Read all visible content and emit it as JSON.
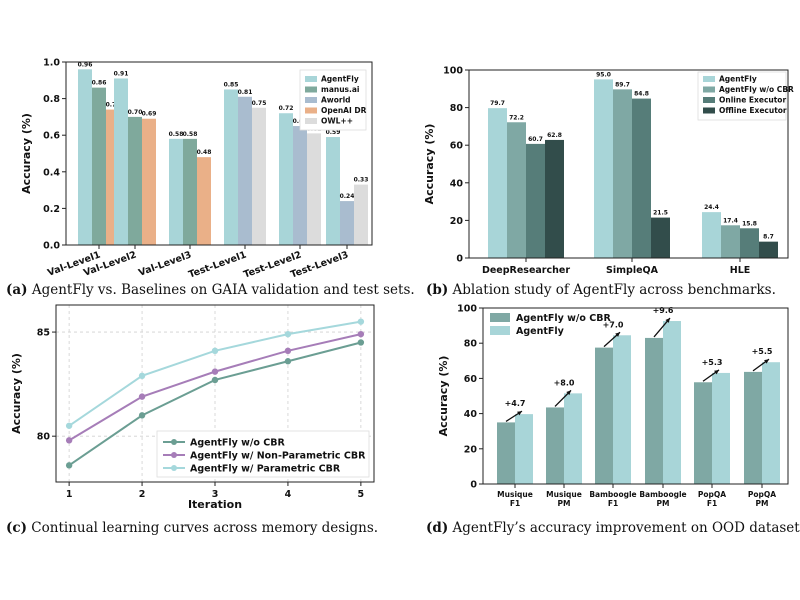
{
  "captions": {
    "a": {
      "tag": "(a)",
      "text": "AgentFly vs. Baselines on GAIA validation and test sets."
    },
    "b": {
      "tag": "(b)",
      "text": "Ablation study of AgentFly across benchmarks."
    },
    "c": {
      "tag": "(c)",
      "text": "Continual learning curves across memory designs."
    },
    "d": {
      "tag": "(d)",
      "text": "AgentFly’s accuracy improvement on OOD datasets."
    }
  },
  "chart_data": [
    {
      "id": "a",
      "type": "bar",
      "ylabel": "Accuracy (%)",
      "xlabel": "",
      "ylim": [
        0,
        1.0
      ],
      "yticks": [
        "0.0",
        "0.2",
        "0.4",
        "0.6",
        "0.8",
        "1.0"
      ],
      "categories": [
        "Val-Level1",
        "Val-Level2",
        "Val-Level3",
        "Test-Level1",
        "Test-Level2",
        "Test-Level3"
      ],
      "legend_position": "top-right",
      "series": [
        {
          "name": "AgentFly",
          "color": "#a8d5d8",
          "values": [
            0.96,
            0.91,
            0.58,
            0.85,
            0.72,
            0.59
          ]
        },
        {
          "name": "manus.ai",
          "color": "#7fa99c",
          "values": [
            0.86,
            0.7,
            0.58,
            null,
            null,
            null
          ]
        },
        {
          "name": "Aworld",
          "color": "#a9bccf",
          "values": [
            null,
            null,
            null,
            0.81,
            0.65,
            0.24
          ]
        },
        {
          "name": "OpenAI DR",
          "color": "#eab088",
          "values": [
            0.74,
            0.69,
            0.48,
            null,
            null,
            null
          ]
        },
        {
          "name": "OWL++",
          "color": "#dcdcdc",
          "values": [
            null,
            null,
            null,
            0.75,
            0.61,
            0.33
          ]
        }
      ],
      "labels": [
        [
          "0.96",
          "0.91",
          "0.58",
          "0.85",
          "0.72",
          "0.59"
        ],
        [
          "0.86",
          "0.70",
          "0.58",
          "",
          "",
          ""
        ],
        [
          "",
          "",
          "",
          "0.81",
          "0.65",
          "0.24"
        ],
        [
          "0.74",
          "0.69",
          "0.48",
          "",
          "",
          ""
        ],
        [
          "",
          "",
          "",
          "0.75",
          "0.61",
          "0.33"
        ]
      ]
    },
    {
      "id": "b",
      "type": "bar",
      "ylabel": "Accuracy (%)",
      "xlabel": "",
      "ylim": [
        0,
        100
      ],
      "yticks": [
        "0",
        "20",
        "40",
        "60",
        "80",
        "100"
      ],
      "categories": [
        "DeepResearcher",
        "SimpleQA",
        "HLE"
      ],
      "legend_position": "top-right",
      "series": [
        {
          "name": "AgentFly",
          "color": "#a8d5d8",
          "values": [
            79.7,
            95.0,
            24.4
          ]
        },
        {
          "name": "AgentFly w/o CBR",
          "color": "#7fa8a4",
          "values": [
            72.2,
            89.7,
            17.4
          ]
        },
        {
          "name": "Online Executor",
          "color": "#567d79",
          "values": [
            60.7,
            84.8,
            15.8
          ]
        },
        {
          "name": "Offline Executor",
          "color": "#324d4b",
          "values": [
            62.8,
            21.5,
            8.7
          ]
        }
      ],
      "labels": [
        [
          "79.7",
          "95.0",
          "24.4"
        ],
        [
          "72.2",
          "89.7",
          "17.4"
        ],
        [
          "60.7",
          "84.8",
          "15.8"
        ],
        [
          "62.8",
          "21.5",
          "8.7"
        ]
      ]
    },
    {
      "id": "c",
      "type": "line",
      "ylabel": "Accuracy (%)",
      "xlabel": "Iteration",
      "x": [
        1,
        2,
        3,
        4,
        5
      ],
      "ylim": [
        77.8,
        86.3
      ],
      "yticks": [
        "80",
        "85"
      ],
      "ytick_values": [
        80,
        85
      ],
      "grid": true,
      "legend_position": "lower-right",
      "series": [
        {
          "name": "AgentFly w/o CBR",
          "color": "#6b9e93",
          "values": [
            78.6,
            81.0,
            82.7,
            83.6,
            84.5
          ]
        },
        {
          "name": "AgentFly w/ Non-Parametric CBR",
          "color": "#a67db8",
          "values": [
            79.8,
            81.9,
            83.1,
            84.1,
            84.9
          ]
        },
        {
          "name": "AgentFly w/ Parametric CBR",
          "color": "#a5d8dc",
          "values": [
            80.5,
            82.9,
            84.1,
            84.9,
            85.5
          ]
        }
      ]
    },
    {
      "id": "d",
      "type": "bar",
      "ylabel": "Accuracy (%)",
      "xlabel": "",
      "ylim": [
        0,
        100
      ],
      "yticks": [
        "0",
        "20",
        "40",
        "60",
        "80",
        "100"
      ],
      "categories": [
        [
          "Musique",
          "F1"
        ],
        [
          "Musique",
          "PM"
        ],
        [
          "Bamboogle",
          "F1"
        ],
        [
          "Bamboogle",
          "PM"
        ],
        [
          "PopQA",
          "F1"
        ],
        [
          "PopQA",
          "PM"
        ]
      ],
      "legend_position": "top-left",
      "series": [
        {
          "name": "AgentFly w/o CBR",
          "color": "#7fa8a4",
          "values": [
            35.0,
            43.5,
            77.5,
            83.0,
            57.8,
            63.7
          ]
        },
        {
          "name": "AgentFly",
          "color": "#a8d5d8",
          "values": [
            39.7,
            51.5,
            84.5,
            92.6,
            63.1,
            69.2
          ]
        }
      ],
      "improvements": [
        "+4.7",
        "+8.0",
        "+7.0",
        "+9.6",
        "+5.3",
        "+5.5"
      ]
    }
  ]
}
